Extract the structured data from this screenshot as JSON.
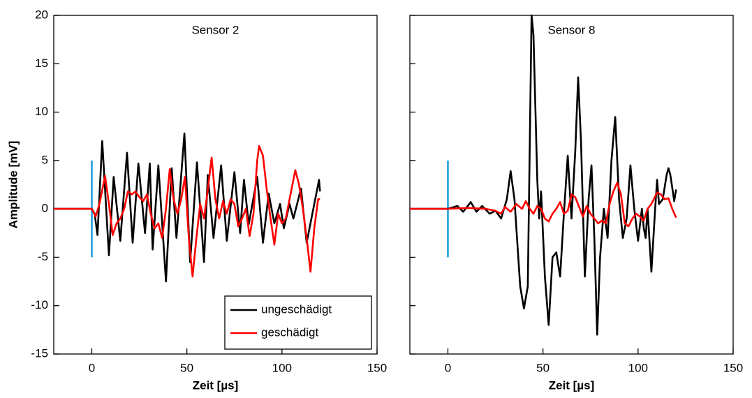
{
  "chart_data": [
    {
      "type": "line",
      "title": "Sensor 2",
      "xlabel": "Zeit [µs]",
      "ylabel": "Amplitude [mV]",
      "xlim": [
        -20,
        150
      ],
      "xticks": [
        0,
        50,
        100,
        150
      ],
      "ylim": [
        -15,
        20
      ],
      "yticks": [
        -15,
        -10,
        -5,
        0,
        5,
        10,
        15,
        20
      ],
      "ytick_labels": true,
      "legend": "lower right",
      "vline": {
        "x": 0,
        "ymin": -5,
        "ymax": 5,
        "color": "#1ea0dc"
      },
      "series": [
        {
          "name": "ungeschädigt",
          "color": "#000000",
          "x": [
            -20,
            0,
            1.5,
            3,
            5.5,
            9,
            11.5,
            15,
            18.5,
            21.5,
            24.5,
            28,
            30.5,
            32,
            35,
            39,
            42,
            44.5,
            48.7,
            51.7,
            55.3,
            59,
            61,
            64,
            68,
            71,
            75,
            78,
            80,
            82.5,
            87,
            90,
            93,
            96,
            99,
            101,
            104,
            106,
            110,
            113,
            119.5,
            120
          ],
          "values": [
            0,
            0,
            -0.5,
            -2.7,
            7,
            -4.8,
            3.3,
            -3.3,
            5.8,
            -3.5,
            4.7,
            -2.5,
            4.7,
            -4.2,
            4.5,
            -7.5,
            4.2,
            -3,
            7.8,
            -5.5,
            4.8,
            -5.5,
            3.5,
            -3,
            4.5,
            -3.3,
            3.8,
            -2.5,
            3,
            -1.6,
            3.3,
            -3.5,
            1.6,
            -1.5,
            0.5,
            -2,
            0.5,
            -1,
            2.1,
            -3.5,
            3,
            1.8
          ]
        },
        {
          "name": "geschädigt",
          "color": "#ff0000",
          "x": [
            -20,
            0,
            2,
            4,
            7,
            9,
            11,
            13,
            15,
            17,
            19,
            21,
            23,
            25,
            27,
            29,
            31,
            33,
            35,
            37,
            39,
            41,
            43,
            45,
            47,
            49,
            51,
            53,
            55,
            57,
            59,
            61,
            63,
            65,
            67,
            69,
            71,
            73,
            75,
            77,
            79,
            81,
            83,
            85,
            87,
            88,
            90,
            92,
            94,
            96,
            98,
            100,
            102,
            104,
            106,
            107,
            109,
            111,
            113,
            115,
            117,
            119,
            120
          ],
          "values": [
            0,
            0,
            -0.8,
            0.5,
            3.4,
            0.5,
            -2.7,
            -1.5,
            -1,
            0,
            1.8,
            1.5,
            1.8,
            1.2,
            0.8,
            1.5,
            -0.5,
            -2,
            -1.5,
            -3,
            0,
            4.1,
            1,
            -0.5,
            1,
            3.3,
            -3,
            -7,
            -3,
            0.5,
            -1,
            2,
            5.3,
            1,
            -1,
            0.8,
            -0.5,
            1,
            0.5,
            -1.8,
            -1,
            0,
            -2.8,
            -0.5,
            5,
            6.5,
            5.5,
            2,
            -1,
            -3.7,
            -0.5,
            -1.5,
            -1,
            1,
            3,
            4,
            2.5,
            0,
            -3,
            -6.5,
            -2,
            1,
            1
          ]
        }
      ]
    },
    {
      "type": "line",
      "title": "Sensor 8",
      "xlabel": "Zeit [µs]",
      "xlim": [
        -20,
        150
      ],
      "xticks": [
        0,
        50,
        100,
        150
      ],
      "ylim": [
        -15,
        20
      ],
      "yticks": [
        -15,
        -10,
        -5,
        0,
        5,
        10,
        15,
        20
      ],
      "ytick_labels": false,
      "vline": {
        "x": 0,
        "ymin": -5,
        "ymax": 5,
        "color": "#1ea0dc"
      },
      "series": [
        {
          "name": "ungeschädigt",
          "color": "#000000",
          "x": [
            -20,
            0,
            5,
            8,
            12,
            15,
            18,
            22,
            25,
            28,
            31,
            33,
            35,
            38,
            40,
            42,
            44,
            45,
            47,
            48,
            49,
            51,
            53,
            55,
            57,
            59,
            61,
            63,
            65,
            67,
            68.5,
            70,
            72,
            74,
            75.5,
            77,
            78.5,
            80,
            82,
            84,
            86,
            88,
            90,
            92,
            94,
            96,
            98,
            100,
            102,
            103,
            104,
            105,
            107,
            109,
            110,
            111,
            113,
            115,
            116,
            117,
            119,
            120
          ],
          "values": [
            0,
            0,
            0.3,
            -0.3,
            0.7,
            -0.3,
            0.3,
            -0.5,
            -0.2,
            -1,
            1,
            3.9,
            1,
            -8,
            -10.3,
            -8,
            20,
            18,
            3,
            -1,
            1.8,
            -7,
            -12,
            -5,
            -4.5,
            -7,
            -0.5,
            5.5,
            -1,
            6,
            13.6,
            7,
            -7,
            1,
            4.5,
            -3,
            -13,
            -5,
            0,
            -3,
            5,
            9.5,
            1,
            -3,
            -1,
            4.5,
            0,
            -3.3,
            0,
            -2,
            -3,
            0,
            -6.5,
            0,
            3,
            0.5,
            1,
            3.5,
            4.2,
            3.5,
            0.8,
            2
          ]
        },
        {
          "name": "geschädigt",
          "color": "#ff0000",
          "x": [
            -20,
            0,
            10,
            20,
            25,
            28,
            30,
            33,
            36,
            39,
            41,
            43,
            45,
            47,
            49,
            51,
            53,
            55,
            57,
            59,
            61,
            63,
            65,
            67,
            69,
            71,
            73,
            75,
            77,
            79,
            81,
            83,
            85,
            87,
            89,
            91,
            93,
            95,
            97,
            99,
            101,
            103,
            105,
            107,
            110,
            112,
            114,
            116,
            118,
            120
          ],
          "values": [
            0,
            0,
            0.1,
            0,
            -0.2,
            -0.5,
            0.2,
            -0.3,
            0.5,
            0,
            0.8,
            0,
            -0.5,
            0.3,
            0,
            -1,
            -1.3,
            -0.5,
            0,
            0.7,
            -0.5,
            -0.2,
            1.5,
            1.2,
            0.2,
            -0.8,
            0.3,
            -0.5,
            -1,
            -1.5,
            -1.2,
            -1.5,
            0.5,
            1.8,
            2.7,
            1.5,
            -1.5,
            -1.8,
            -1,
            -0.5,
            -0.8,
            -1.2,
            0,
            0.5,
            1.7,
            1.5,
            1,
            1.1,
            0,
            -0.9
          ]
        }
      ]
    }
  ]
}
